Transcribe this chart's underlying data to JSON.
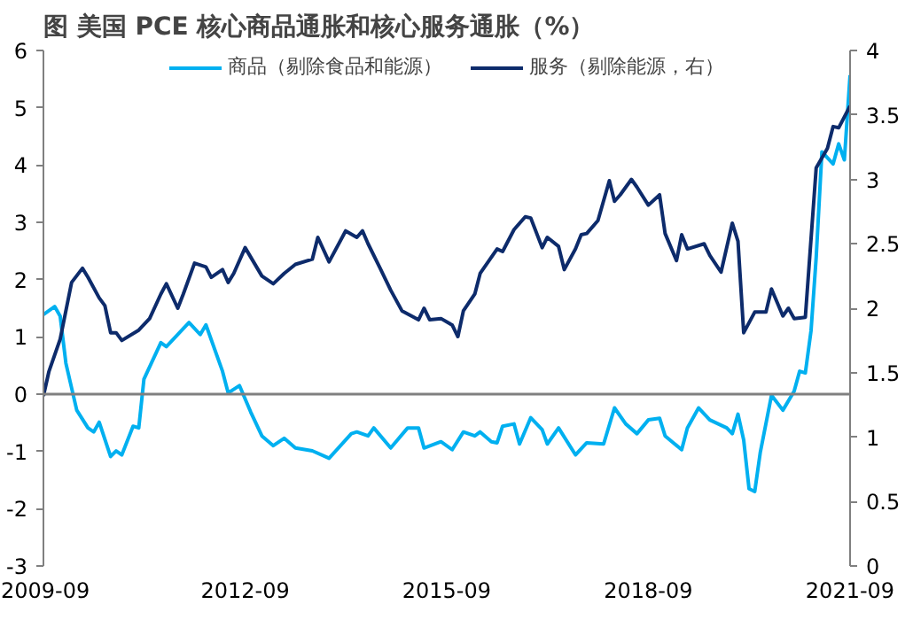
{
  "chart_data": {
    "type": "line",
    "title": "图 美国 PCE 核心商品通胀和核心服务通胀（%）",
    "legend": "top",
    "grid": false,
    "marker": "none",
    "line_style": "solid",
    "xlim": [
      "2009-09",
      "2021-09"
    ],
    "xticks": [
      "2009-09",
      "2012-09",
      "2015-09",
      "2018-09",
      "2021-09"
    ],
    "ylim": [
      -3,
      6
    ],
    "yticks": [
      -3,
      -2,
      -1,
      0,
      1,
      2,
      3,
      4,
      5,
      6
    ],
    "y2lim": [
      0,
      4
    ],
    "y2ticks": [
      0,
      0.5,
      1,
      1.5,
      2,
      2.5,
      3,
      3.5,
      4
    ],
    "ref_lines": [
      {
        "axis": "y",
        "value": 0,
        "color": "#808080"
      }
    ],
    "series": [
      {
        "name": "商品（剔除食品和能源）",
        "color": "#00b0f0",
        "x": [
          "2009-09",
          "2009-11",
          "2009-12",
          "2010-01",
          "2010-03",
          "2010-05",
          "2010-06",
          "2010-07",
          "2010-09",
          "2010-10",
          "2010-11",
          "2011-01",
          "2011-02",
          "2011-03",
          "2011-06",
          "2011-07",
          "2011-09",
          "2011-11",
          "2012-01",
          "2012-02",
          "2012-05",
          "2012-06",
          "2012-08",
          "2012-10",
          "2012-12",
          "2013-02",
          "2013-04",
          "2013-06",
          "2013-09",
          "2013-12",
          "2014-04",
          "2014-05",
          "2014-07",
          "2014-08",
          "2014-11",
          "2015-02",
          "2015-04",
          "2015-05",
          "2015-08",
          "2015-10",
          "2015-12",
          "2016-02",
          "2016-03",
          "2016-05",
          "2016-06",
          "2016-07",
          "2016-09",
          "2016-10",
          "2016-12",
          "2017-02",
          "2017-03",
          "2017-05",
          "2017-08",
          "2017-10",
          "2018-01",
          "2018-03",
          "2018-05",
          "2018-07",
          "2018-09",
          "2018-11",
          "2018-12",
          "2019-03",
          "2019-04",
          "2019-06",
          "2019-08",
          "2019-11",
          "2019-12",
          "2020-01",
          "2020-02",
          "2020-03",
          "2020-04",
          "2020-05",
          "2020-07",
          "2020-09",
          "2020-11",
          "2020-12",
          "2021-01",
          "2021-02",
          "2021-03",
          "2021-04",
          "2021-06",
          "2021-07",
          "2021-08",
          "2021-09"
        ],
        "values": [
          1.39,
          1.53,
          1.36,
          0.54,
          -0.28,
          -0.59,
          -0.66,
          -0.49,
          -1.09,
          -0.99,
          -1.06,
          -0.56,
          -0.59,
          0.26,
          0.9,
          0.83,
          1.04,
          1.25,
          1.04,
          1.21,
          0.4,
          0.02,
          0.15,
          -0.31,
          -0.73,
          -0.9,
          -0.77,
          -0.94,
          -0.99,
          -1.12,
          -0.69,
          -0.66,
          -0.73,
          -0.59,
          -0.94,
          -0.59,
          -0.59,
          -0.94,
          -0.83,
          -0.97,
          -0.66,
          -0.73,
          -0.66,
          -0.83,
          -0.85,
          -0.56,
          -0.52,
          -0.87,
          -0.41,
          -0.62,
          -0.87,
          -0.59,
          -1.06,
          -0.85,
          -0.87,
          -0.24,
          -0.52,
          -0.69,
          -0.45,
          -0.42,
          -0.73,
          -0.97,
          -0.59,
          -0.24,
          -0.45,
          -0.59,
          -0.69,
          -0.35,
          -0.8,
          -1.65,
          -1.7,
          -1.02,
          -0.02,
          -0.28,
          0.05,
          0.4,
          0.37,
          1.11,
          2.39,
          4.23,
          4.02,
          4.37,
          4.09,
          5.57
        ]
      },
      {
        "name": "服务（剔除能源，右）",
        "color": "#0d2b6b",
        "axis": "y2",
        "x": [
          "2009-09",
          "2009-10",
          "2009-12",
          "2010-02",
          "2010-04",
          "2010-05",
          "2010-07",
          "2010-08",
          "2010-09",
          "2010-10",
          "2010-11",
          "2011-02",
          "2011-04",
          "2011-06",
          "2011-07",
          "2011-09",
          "2011-10",
          "2011-12",
          "2012-02",
          "2012-03",
          "2012-05",
          "2012-06",
          "2012-07",
          "2012-09",
          "2012-12",
          "2013-02",
          "2013-04",
          "2013-06",
          "2013-09",
          "2013-10",
          "2013-12",
          "2014-03",
          "2014-05",
          "2014-06",
          "2014-07",
          "2014-09",
          "2014-11",
          "2015-01",
          "2015-04",
          "2015-05",
          "2015-06",
          "2015-08",
          "2015-10",
          "2015-11",
          "2015-12",
          "2016-02",
          "2016-03",
          "2016-06",
          "2016-07",
          "2016-09",
          "2016-11",
          "2016-12",
          "2017-02",
          "2017-03",
          "2017-05",
          "2017-06",
          "2017-08",
          "2017-09",
          "2017-10",
          "2017-12",
          "2018-02",
          "2018-03",
          "2018-04",
          "2018-06",
          "2018-07",
          "2018-09",
          "2018-11",
          "2018-12",
          "2019-02",
          "2019-03",
          "2019-04",
          "2019-07",
          "2019-08",
          "2019-10",
          "2019-12",
          "2020-01",
          "2020-02",
          "2020-04",
          "2020-06",
          "2020-07",
          "2020-09",
          "2020-10",
          "2020-11",
          "2021-01",
          "2021-03",
          "2021-05",
          "2021-06",
          "2021-07",
          "2021-09"
        ],
        "values": [
          1.32,
          1.51,
          1.76,
          2.2,
          2.31,
          2.24,
          2.08,
          2.02,
          1.81,
          1.81,
          1.75,
          1.83,
          1.92,
          2.11,
          2.19,
          2.0,
          2.11,
          2.35,
          2.32,
          2.24,
          2.3,
          2.2,
          2.27,
          2.47,
          2.25,
          2.19,
          2.27,
          2.34,
          2.38,
          2.55,
          2.36,
          2.6,
          2.55,
          2.6,
          2.5,
          2.32,
          2.14,
          1.98,
          1.91,
          2.0,
          1.91,
          1.92,
          1.87,
          1.78,
          1.98,
          2.11,
          2.27,
          2.46,
          2.44,
          2.61,
          2.71,
          2.7,
          2.47,
          2.55,
          2.48,
          2.3,
          2.46,
          2.57,
          2.58,
          2.68,
          2.99,
          2.83,
          2.88,
          3.0,
          2.94,
          2.8,
          2.88,
          2.58,
          2.37,
          2.57,
          2.46,
          2.5,
          2.41,
          2.28,
          2.66,
          2.52,
          1.81,
          1.97,
          1.97,
          2.15,
          1.94,
          2.0,
          1.92,
          1.93,
          3.09,
          3.24,
          3.41,
          3.4,
          3.57
        ]
      }
    ]
  }
}
